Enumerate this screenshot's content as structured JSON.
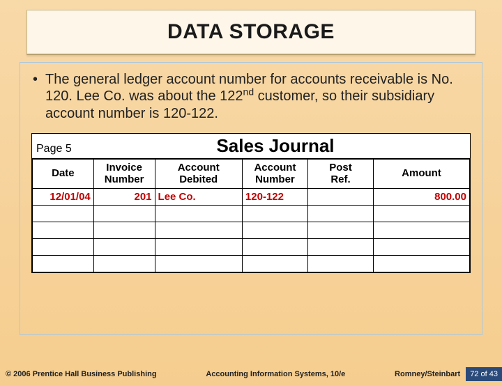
{
  "title": "DATA STORAGE",
  "bullet_html": "The general ledger account number for accounts receivable is No. 120.  Lee Co. was about the 122<span class=\"sup\">nd</span> customer, so their subsidiary account number is 120-122.",
  "journal": {
    "page_label": "Page 5",
    "title": "Sales Journal",
    "columns": [
      "Date",
      "Invoice Number",
      "Account Debited",
      "Account Number",
      "Post Ref.",
      "Amount"
    ],
    "col_widths": [
      "14%",
      "14%",
      "20%",
      "15%",
      "15%",
      "22%"
    ],
    "header_alignment": [
      "center",
      "center",
      "center",
      "center",
      "center",
      "center"
    ],
    "data_alignment": [
      "right",
      "right",
      "left",
      "left",
      "left",
      "right"
    ],
    "rows": [
      [
        "12/01/04",
        "201",
        "Lee Co.",
        "120-122",
        "",
        "800.00"
      ],
      [
        "",
        "",
        "",
        "",
        "",
        ""
      ],
      [
        "",
        "",
        "",
        "",
        "",
        ""
      ],
      [
        "",
        "",
        "",
        "",
        "",
        ""
      ],
      [
        "",
        "",
        "",
        "",
        "",
        ""
      ]
    ],
    "row_color": "#c00000"
  },
  "footer": {
    "copyright": "© 2006 Prentice Hall Business Publishing",
    "center": "Accounting Information Systems, 10/e",
    "author": "Romney/Steinbart",
    "page_current": "72",
    "page_of": "of",
    "page_total": "43"
  },
  "colors": {
    "bg_top": "#f8d9a8",
    "bg_bottom": "#f5cd8f",
    "title_bg": "#fdf6e9",
    "content_border": "#a8c8e0",
    "footer_page_bg": "#2a4a7a"
  }
}
